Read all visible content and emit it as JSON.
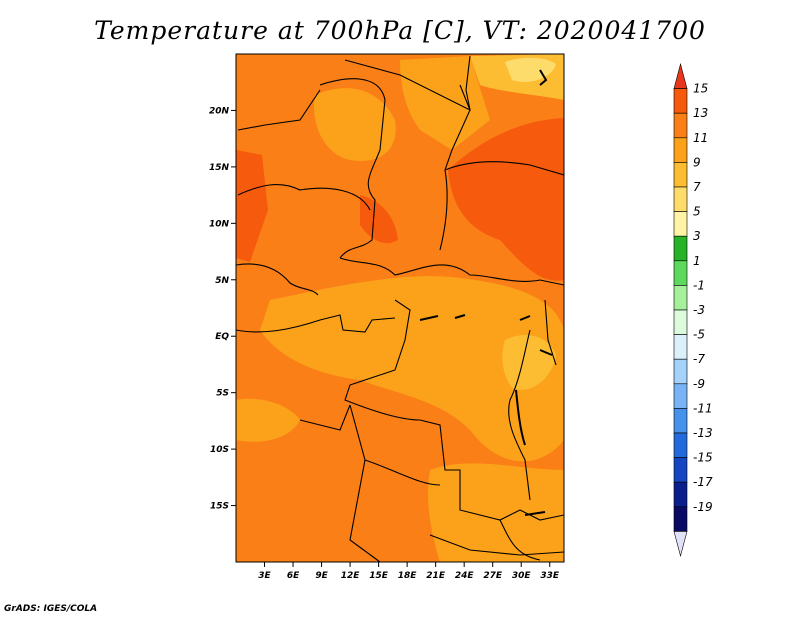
{
  "title": "Temperature at 700hPa [C], VT: 2020041700",
  "credit": "GrADS: IGES/COLA",
  "map": {
    "lon_range": [
      0,
      34.5
    ],
    "lat_range": [
      -20,
      25
    ],
    "lat_ticks": [
      {
        "value": 20,
        "label": "20N"
      },
      {
        "value": 15,
        "label": "15N"
      },
      {
        "value": 10,
        "label": "10N"
      },
      {
        "value": 5,
        "label": "5N"
      },
      {
        "value": 0,
        "label": "EQ"
      },
      {
        "value": -5,
        "label": "5S"
      },
      {
        "value": -10,
        "label": "10S"
      },
      {
        "value": -15,
        "label": "15S"
      }
    ],
    "lon_ticks": [
      {
        "value": 3,
        "label": "3E"
      },
      {
        "value": 6,
        "label": "6E"
      },
      {
        "value": 9,
        "label": "9E"
      },
      {
        "value": 12,
        "label": "12E"
      },
      {
        "value": 15,
        "label": "15E"
      },
      {
        "value": 18,
        "label": "18E"
      },
      {
        "value": 21,
        "label": "21E"
      },
      {
        "value": 24,
        "label": "24E"
      },
      {
        "value": 27,
        "label": "27E"
      },
      {
        "value": 30,
        "label": "30E"
      },
      {
        "value": 33,
        "label": "33E"
      }
    ]
  },
  "colorbar": {
    "labels": [
      "15",
      "13",
      "11",
      "9",
      "7",
      "5",
      "3",
      "1",
      "-1",
      "-3",
      "-5",
      "-7",
      "-9",
      "-11",
      "-13",
      "-15",
      "-17",
      "-19"
    ],
    "colors": [
      "#e8361c",
      "#f55a0d",
      "#fa7f17",
      "#fba21a",
      "#fdbd32",
      "#fedc6c",
      "#fff4a6",
      "#27b227",
      "#5ed95e",
      "#a6f09c",
      "#dcfadc",
      "#dcf0fa",
      "#a5d2fa",
      "#78b4f5",
      "#4691ec",
      "#2269dc",
      "#1446c2",
      "#0a1e8c",
      "#0a0a64",
      "#e1e1fa"
    ]
  }
}
